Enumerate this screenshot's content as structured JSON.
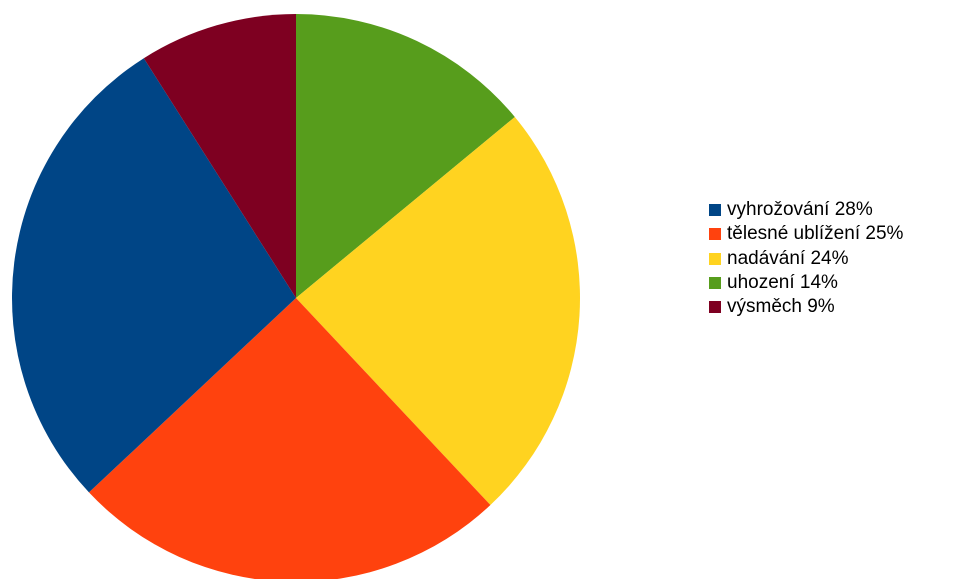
{
  "chart_data": {
    "type": "pie",
    "title": "",
    "start_angle_deg": 0,
    "direction": "clockwise",
    "legend_position": "right",
    "slices": [
      {
        "label": "uhození 14%",
        "value": 14,
        "color": "#579D1C"
      },
      {
        "label": "nadávání 24%",
        "value": 24,
        "color": "#FFD320"
      },
      {
        "label": "tělesné ublížení 25%",
        "value": 25,
        "color": "#FF420E"
      },
      {
        "label": "vyhrožování 28%",
        "value": 28,
        "color": "#004586"
      },
      {
        "label": "výsměch 9%",
        "value": 9,
        "color": "#7E0021"
      }
    ],
    "legend_order": [
      "vyhrožování 28%",
      "tělesné ublížení 25%",
      "nadávání 24%",
      "uhození 14%",
      "výsměch 9%"
    ]
  }
}
